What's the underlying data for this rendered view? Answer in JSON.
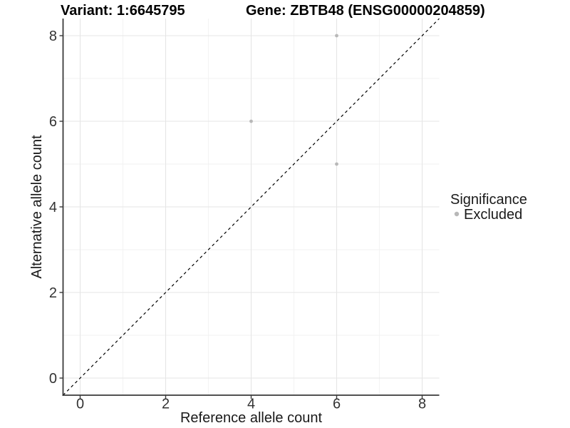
{
  "chart_data": {
    "type": "scatter",
    "titles": {
      "left": "Variant: 1:6645795",
      "right": "Gene: ZBTB48 (ENSG00000204859)"
    },
    "xlabel": "Reference allele count",
    "ylabel": "Alternative allele count",
    "xlim": [
      -0.4,
      8.4
    ],
    "ylim": [
      -0.4,
      8.4
    ],
    "xticks": [
      0,
      2,
      4,
      6,
      8
    ],
    "yticks": [
      0,
      2,
      4,
      6,
      8
    ],
    "minor_gridlines": [
      1,
      3,
      5,
      7
    ],
    "grid": true,
    "reference_line": {
      "type": "identity",
      "style": "dashed",
      "color": "#000000"
    },
    "series": [
      {
        "name": "Excluded",
        "color": "#b8b8b8",
        "marker": "circle",
        "points": [
          {
            "x": 4,
            "y": 6
          },
          {
            "x": 6,
            "y": 8
          },
          {
            "x": 6,
            "y": 5
          }
        ]
      }
    ],
    "legend": {
      "title": "Significance",
      "position": "right",
      "items": [
        {
          "label": "Excluded",
          "color": "#b8b8b8"
        }
      ]
    }
  },
  "colors": {
    "background": "#ffffff",
    "axis": "#3a3a3a",
    "grid_major": "#e5e5e5",
    "grid_minor": "#f2f2f2",
    "point": "#b8b8b8"
  }
}
